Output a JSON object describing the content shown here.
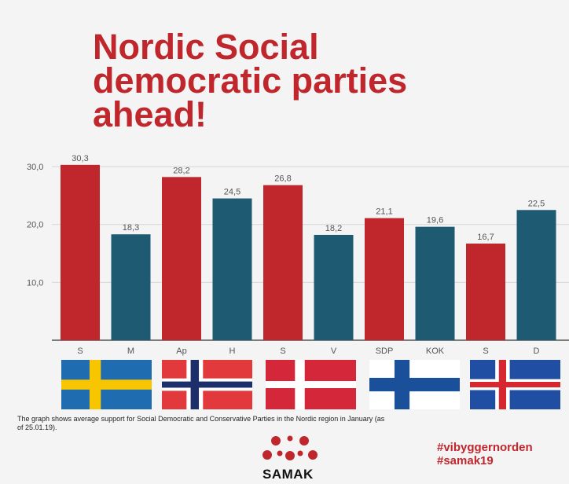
{
  "title_lines": [
    "Nordic Social",
    "democratic parties",
    "ahead!"
  ],
  "chart_data": {
    "type": "bar",
    "categories": [
      "S",
      "M",
      "Ap",
      "H",
      "S",
      "V",
      "SDP",
      "KOK",
      "S",
      "D"
    ],
    "values": [
      30.3,
      18.3,
      28.2,
      24.5,
      26.8,
      18.2,
      21.1,
      19.6,
      16.7,
      22.5
    ],
    "value_labels": [
      "30,3",
      "18,3",
      "28,2",
      "24,5",
      "26,8",
      "18,2",
      "21,1",
      "19,6",
      "16,7",
      "22,5"
    ],
    "yticks": [
      10,
      20,
      30
    ],
    "ytick_labels": [
      "10,0",
      "20,0",
      "30,0"
    ],
    "ylim": [
      0,
      31.5
    ],
    "grid": true,
    "bar_colors": [
      "#c0272d",
      "#1f5a73",
      "#c0272d",
      "#1f5a73",
      "#c0272d",
      "#1f5a73",
      "#c0272d",
      "#1f5a73",
      "#c0272d",
      "#1f5a73"
    ]
  },
  "flags": [
    "sweden-flag",
    "norway-flag",
    "denmark-flag",
    "finland-flag",
    "iceland-flag"
  ],
  "caption": "The graph shows average support for Social Democratic and Conservative Parties in the Nordic region in January (as of 25.01.19).",
  "logo": {
    "text": "SAMAK",
    "color": "#c0272d"
  },
  "hashtags": [
    "#vibyggernorden",
    "#samak19"
  ],
  "colors": {
    "accent": "#c0272d",
    "teal": "#1f5a73"
  }
}
